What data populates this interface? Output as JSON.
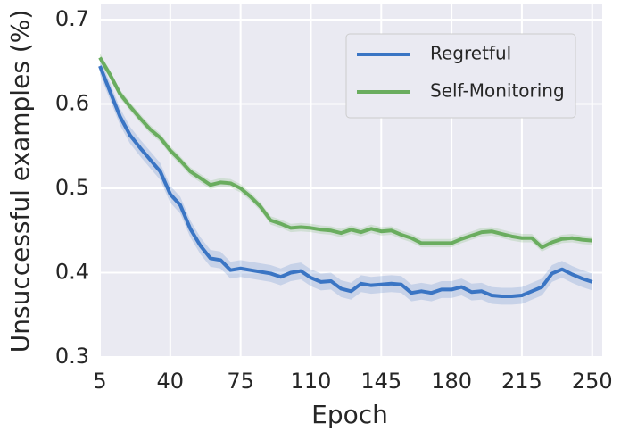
{
  "chart_data": {
    "type": "line",
    "xlabel": "Epoch",
    "ylabel": "Unsuccessful examples (%)",
    "x": [
      5,
      10,
      15,
      20,
      25,
      30,
      35,
      40,
      45,
      50,
      55,
      60,
      65,
      70,
      75,
      80,
      85,
      90,
      95,
      100,
      105,
      110,
      115,
      120,
      125,
      130,
      135,
      140,
      145,
      150,
      155,
      160,
      165,
      170,
      175,
      180,
      185,
      190,
      195,
      200,
      205,
      210,
      215,
      220,
      225,
      230,
      235,
      240,
      245,
      250
    ],
    "series": [
      {
        "name": "Regretful",
        "color": "#3a75c4",
        "error": 0.01,
        "values": [
          0.645,
          0.615,
          0.585,
          0.563,
          0.548,
          0.534,
          0.52,
          0.493,
          0.48,
          0.452,
          0.432,
          0.417,
          0.415,
          0.403,
          0.405,
          0.403,
          0.401,
          0.399,
          0.395,
          0.4,
          0.402,
          0.394,
          0.389,
          0.39,
          0.381,
          0.378,
          0.387,
          0.385,
          0.386,
          0.387,
          0.386,
          0.376,
          0.378,
          0.376,
          0.38,
          0.38,
          0.383,
          0.377,
          0.378,
          0.373,
          0.372,
          0.372,
          0.373,
          0.378,
          0.383,
          0.399,
          0.404,
          0.398,
          0.393,
          0.389
        ]
      },
      {
        "name": "Self-Monitoring",
        "color": "#6aad5f",
        "error": 0.005,
        "values": [
          0.655,
          0.635,
          0.612,
          0.597,
          0.583,
          0.57,
          0.56,
          0.545,
          0.533,
          0.52,
          0.512,
          0.504,
          0.507,
          0.506,
          0.5,
          0.49,
          0.478,
          0.462,
          0.458,
          0.453,
          0.454,
          0.453,
          0.451,
          0.45,
          0.447,
          0.451,
          0.448,
          0.452,
          0.449,
          0.45,
          0.445,
          0.441,
          0.435,
          0.435,
          0.435,
          0.435,
          0.44,
          0.444,
          0.448,
          0.449,
          0.446,
          0.443,
          0.441,
          0.441,
          0.43,
          0.436,
          0.44,
          0.441,
          0.439,
          0.438
        ]
      }
    ],
    "xlim": [
      5,
      255
    ],
    "ylim": [
      0.3,
      0.718
    ],
    "xticks": [
      5,
      40,
      75,
      110,
      145,
      180,
      215,
      250
    ],
    "yticks": [
      0.3,
      0.4,
      0.5,
      0.6,
      0.7
    ],
    "grid": true,
    "legend": "upper right"
  }
}
